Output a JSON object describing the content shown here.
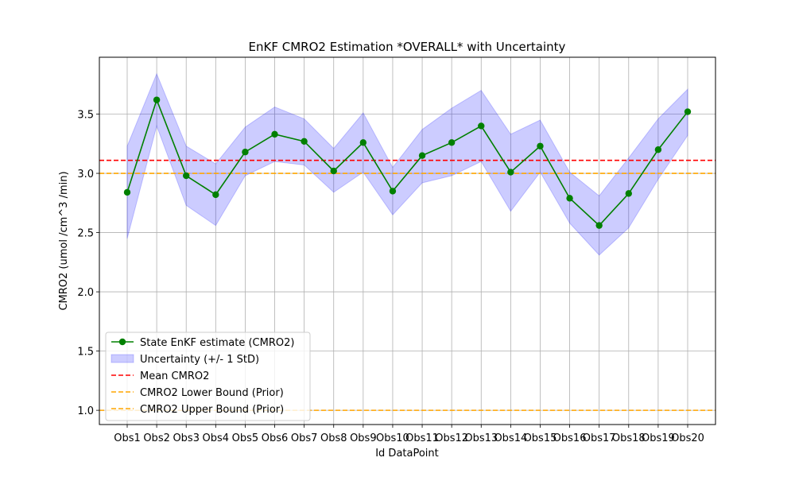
{
  "chart_data": {
    "type": "line",
    "title": "EnKF CMRO2 Estimation *OVERALL* with Uncertainty",
    "xlabel": "Id DataPoint",
    "ylabel": "CMRO2 (umol /cm^3 /min)",
    "categories": [
      "Obs1",
      "Obs2",
      "Obs3",
      "Obs4",
      "Obs5",
      "Obs6",
      "Obs7",
      "Obs8",
      "Obs9",
      "Obs10",
      "Obs11",
      "Obs12",
      "Obs13",
      "Obs14",
      "Obs15",
      "Obs16",
      "Obs17",
      "Obs18",
      "Obs19",
      "Obs20"
    ],
    "ylim": [
      0.88,
      3.98
    ],
    "yticks": [
      1.0,
      1.5,
      2.0,
      2.5,
      3.0,
      3.5
    ],
    "ytick_labels": [
      "1.0",
      "1.5",
      "2.0",
      "2.5",
      "3.0",
      "3.5"
    ],
    "grid": true,
    "legend_position": "lower-left",
    "series": [
      {
        "name": "State EnKF estimate (CMRO2)",
        "kind": "line-marker",
        "color": "#008000",
        "values": [
          2.84,
          3.62,
          2.98,
          2.82,
          3.18,
          3.33,
          3.27,
          3.02,
          3.26,
          2.85,
          3.15,
          3.26,
          3.4,
          3.01,
          3.23,
          2.79,
          2.56,
          2.83,
          3.2,
          3.52
        ]
      },
      {
        "name": "Uncertainty (+/- 1 StD)",
        "kind": "band",
        "color": "#0000ff",
        "upper": [
          3.23,
          3.84,
          3.23,
          3.08,
          3.39,
          3.56,
          3.46,
          3.21,
          3.51,
          3.05,
          3.37,
          3.55,
          3.7,
          3.33,
          3.45,
          3.01,
          2.81,
          3.13,
          3.46,
          3.71
        ],
        "lower": [
          2.45,
          3.4,
          2.73,
          2.56,
          2.98,
          3.1,
          3.07,
          2.84,
          3.01,
          2.65,
          2.92,
          2.98,
          3.1,
          2.68,
          3.01,
          2.58,
          2.31,
          2.54,
          2.95,
          3.32
        ]
      },
      {
        "name": "Mean CMRO2",
        "kind": "hline",
        "color": "#ff0000",
        "value": 3.11
      },
      {
        "name": "CMRO2 Lower Bound (Prior)",
        "kind": "hline",
        "color": "#ffa500",
        "value": 3.0
      },
      {
        "name": "CMRO2 Upper Bound (Prior)",
        "kind": "hline",
        "color": "#ffa500",
        "value": 1.0
      }
    ]
  }
}
